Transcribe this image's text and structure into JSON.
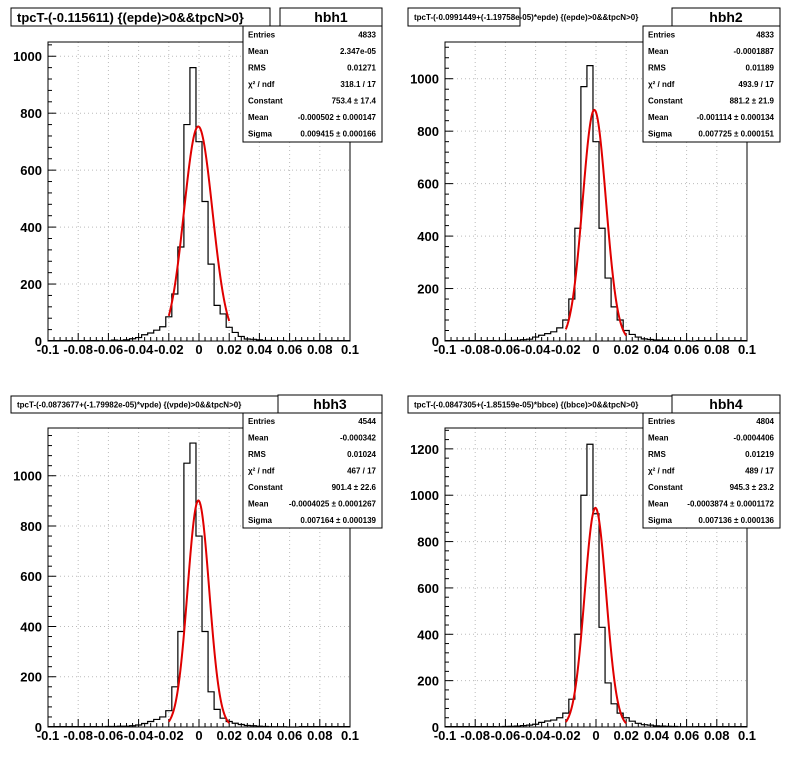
{
  "chart_data": [
    {
      "type": "bar",
      "title": "tpcT-(-0.115611) {(epde)>0&&tpcN>0}",
      "histname": "hbh1",
      "xlim": [
        -0.1,
        0.1
      ],
      "ylim": [
        0,
        1050
      ],
      "yticks": [
        0,
        200,
        400,
        600,
        800,
        1000
      ],
      "xticks": [
        "-0.1",
        "-0.08",
        "-0.06",
        "-0.04",
        "-0.02",
        "0",
        "0.02",
        "0.04",
        "0.06",
        "0.08",
        "0.1"
      ],
      "grid": true,
      "stats": [
        {
          "label": "Entries",
          "value": "4833"
        },
        {
          "label": "Mean",
          "value": "2.347e-05"
        },
        {
          "label": "RMS",
          "value": "0.01271"
        },
        {
          "label": "χ² / ndf",
          "value": "318.1 / 17"
        },
        {
          "label": "Constant",
          "value": "753.4 ± 17.4"
        },
        {
          "label": "Mean",
          "value": "-0.000502 ± 0.000147"
        },
        {
          "label": "Sigma",
          "value": "0.009415 ± 0.000166"
        }
      ],
      "bin_width": 0.004,
      "x": [
        -0.064,
        -0.06,
        -0.056,
        -0.052,
        -0.048,
        -0.044,
        -0.04,
        -0.036,
        -0.032,
        -0.028,
        -0.024,
        -0.02,
        -0.016,
        -0.012,
        -0.008,
        -0.004,
        0,
        0.004,
        0.008,
        0.012,
        0.016,
        0.02,
        0.024,
        0.028,
        0.032,
        0.036,
        0.04,
        0.044,
        0.048,
        0.052,
        0.056,
        0.06,
        0.064
      ],
      "values": [
        1,
        1,
        3,
        2,
        4,
        8,
        12,
        22,
        28,
        38,
        50,
        85,
        165,
        330,
        760,
        960,
        700,
        490,
        270,
        125,
        95,
        48,
        30,
        16,
        7,
        6,
        4,
        2,
        2,
        1,
        1,
        0,
        1
      ],
      "fit": {
        "name": "gaus",
        "constant": 753.4,
        "mean": -0.000502,
        "sigma": 0.009415,
        "range": [
          -0.02,
          0.02
        ]
      }
    },
    {
      "type": "bar",
      "title": "tpcT-(-0.0991449+(-1.19758e-05)*epde) {(epde)>0&&tpcN>0}",
      "histname": "hbh2",
      "xlim": [
        -0.1,
        0.1
      ],
      "ylim": [
        0,
        1140
      ],
      "yticks": [
        0,
        200,
        400,
        600,
        800,
        1000
      ],
      "xticks": [
        "-0.1",
        "-0.08",
        "-0.06",
        "-0.04",
        "-0.02",
        "0",
        "0.02",
        "0.04",
        "0.06",
        "0.08",
        "0.1"
      ],
      "grid": true,
      "stats": [
        {
          "label": "Entries",
          "value": "4833"
        },
        {
          "label": "Mean",
          "value": "-0.0001887"
        },
        {
          "label": "RMS",
          "value": "0.01189"
        },
        {
          "label": "χ² / ndf",
          "value": "493.9 / 17"
        },
        {
          "label": "Constant",
          "value": "881.2 ± 21.9"
        },
        {
          "label": "Mean",
          "value": "-0.001114 ± 0.000134"
        },
        {
          "label": "Sigma",
          "value": "0.007725 ± 0.000151"
        }
      ],
      "bin_width": 0.004,
      "x": [
        -0.064,
        -0.06,
        -0.056,
        -0.052,
        -0.048,
        -0.044,
        -0.04,
        -0.036,
        -0.032,
        -0.028,
        -0.024,
        -0.02,
        -0.016,
        -0.012,
        -0.008,
        -0.004,
        0,
        0.004,
        0.008,
        0.012,
        0.016,
        0.02,
        0.024,
        0.028,
        0.032,
        0.036,
        0.04,
        0.044,
        0.048,
        0.052,
        0.056,
        0.06,
        0.064
      ],
      "values": [
        1,
        2,
        2,
        3,
        5,
        7,
        15,
        22,
        28,
        35,
        50,
        80,
        160,
        430,
        970,
        1050,
        760,
        430,
        240,
        130,
        80,
        40,
        25,
        15,
        8,
        6,
        4,
        3,
        2,
        1,
        1,
        1,
        0
      ],
      "fit": {
        "name": "gaus",
        "constant": 881.2,
        "mean": -0.001114,
        "sigma": 0.007725,
        "range": [
          -0.02,
          0.02
        ]
      }
    },
    {
      "type": "bar",
      "title": "tpcT-(-0.0873677+(-1.79982e-05)*vpde) {(vpde)>0&&tpcN>0}",
      "histname": "hbh3",
      "xlim": [
        -0.1,
        0.1
      ],
      "ylim": [
        0,
        1190
      ],
      "yticks": [
        0,
        200,
        400,
        600,
        800,
        1000
      ],
      "xticks": [
        "-0.1",
        "-0.08",
        "-0.06",
        "-0.04",
        "-0.02",
        "0",
        "0.02",
        "0.04",
        "0.06",
        "0.08",
        "0.1"
      ],
      "grid": true,
      "stats": [
        {
          "label": "Entries",
          "value": "4544"
        },
        {
          "label": "Mean",
          "value": "-0.000342"
        },
        {
          "label": "RMS",
          "value": "0.01024"
        },
        {
          "label": "χ² / ndf",
          "value": "467 / 17"
        },
        {
          "label": "Constant",
          "value": "901.4 ± 22.6"
        },
        {
          "label": "Mean",
          "value": "-0.0004025 ± 0.0001267"
        },
        {
          "label": "Sigma",
          "value": "0.007164 ± 0.000139"
        }
      ],
      "bin_width": 0.004,
      "x": [
        -0.064,
        -0.06,
        -0.056,
        -0.052,
        -0.048,
        -0.044,
        -0.04,
        -0.036,
        -0.032,
        -0.028,
        -0.024,
        -0.02,
        -0.016,
        -0.012,
        -0.008,
        -0.004,
        0,
        0.004,
        0.008,
        0.012,
        0.016,
        0.02,
        0.024,
        0.028,
        0.032,
        0.036,
        0.04,
        0.044,
        0.048,
        0.052,
        0.056,
        0.06,
        0.064
      ],
      "values": [
        1,
        2,
        2,
        3,
        3,
        5,
        8,
        14,
        22,
        30,
        40,
        65,
        160,
        380,
        1050,
        1130,
        760,
        380,
        140,
        70,
        35,
        22,
        15,
        10,
        6,
        5,
        3,
        2,
        1,
        1,
        1,
        0,
        0
      ],
      "fit": {
        "name": "gaus",
        "constant": 901.4,
        "mean": -0.0004025,
        "sigma": 0.007164,
        "range": [
          -0.02,
          0.02
        ]
      }
    },
    {
      "type": "bar",
      "title": "tpcT-(-0.0847305+(-1.85159e-05)*bbce) {(bbce)>0&&tpcN>0}",
      "histname": "hbh4",
      "xlim": [
        -0.1,
        0.1
      ],
      "ylim": [
        0,
        1290
      ],
      "yticks": [
        0,
        200,
        400,
        600,
        800,
        1000,
        1200
      ],
      "xticks": [
        "-0.1",
        "-0.08",
        "-0.06",
        "-0.04",
        "-0.02",
        "0",
        "0.02",
        "0.04",
        "0.06",
        "0.08",
        "0.1"
      ],
      "grid": true,
      "stats": [
        {
          "label": "Entries",
          "value": "4804"
        },
        {
          "label": "Mean",
          "value": "-0.0004406"
        },
        {
          "label": "RMS",
          "value": "0.01219"
        },
        {
          "label": "χ² / ndf",
          "value": "489 / 17"
        },
        {
          "label": "Constant",
          "value": "945.3 ± 23.2"
        },
        {
          "label": "Mean",
          "value": "-0.0003874 ± 0.0001172"
        },
        {
          "label": "Sigma",
          "value": "0.007136 ± 0.000136"
        }
      ],
      "bin_width": 0.004,
      "x": [
        -0.064,
        -0.06,
        -0.056,
        -0.052,
        -0.048,
        -0.044,
        -0.04,
        -0.036,
        -0.032,
        -0.028,
        -0.024,
        -0.02,
        -0.016,
        -0.012,
        -0.008,
        -0.004,
        0,
        0.004,
        0.008,
        0.012,
        0.016,
        0.02,
        0.024,
        0.028,
        0.032,
        0.036,
        0.04,
        0.044,
        0.048,
        0.052,
        0.056,
        0.06,
        0.064
      ],
      "values": [
        1,
        2,
        3,
        4,
        6,
        8,
        12,
        20,
        26,
        30,
        40,
        60,
        120,
        400,
        1000,
        1220,
        920,
        430,
        190,
        100,
        60,
        40,
        25,
        16,
        10,
        8,
        5,
        4,
        3,
        2,
        1,
        1,
        1
      ],
      "fit": {
        "name": "gaus",
        "constant": 945.3,
        "mean": -0.0003874,
        "sigma": 0.007136,
        "range": [
          -0.02,
          0.02
        ]
      }
    }
  ],
  "colors": {
    "histogram": "#000000",
    "fit": "#e00000",
    "grid": "#bbbbbb",
    "frame": "#000000"
  }
}
